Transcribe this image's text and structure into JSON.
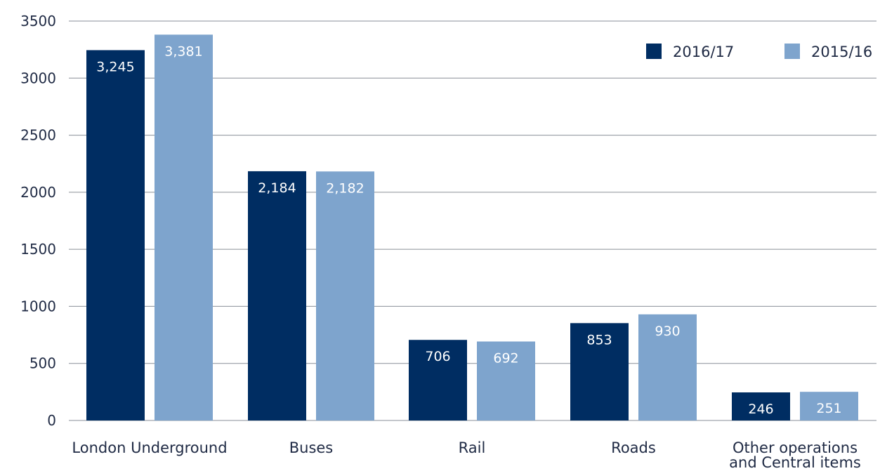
{
  "chart_data": {
    "type": "bar",
    "categories": [
      [
        "London Underground"
      ],
      [
        "Buses"
      ],
      [
        "Rail"
      ],
      [
        "Roads"
      ],
      [
        "Other operations",
        "and Central items"
      ]
    ],
    "series": [
      {
        "name": "2016/17",
        "values": [
          3245,
          2184,
          706,
          853,
          246
        ],
        "labels": [
          "3,245",
          "2,184",
          "706",
          "853",
          "246"
        ],
        "color": "#002d62"
      },
      {
        "name": "2015/16",
        "values": [
          3381,
          2182,
          692,
          930,
          251
        ],
        "labels": [
          "3,381",
          "2,182",
          "692",
          "930",
          "251"
        ],
        "color": "#7ea4cd"
      }
    ],
    "ylim": [
      0,
      3500
    ],
    "yticks": [
      "0",
      "500",
      "1000",
      "1500",
      "2000",
      "2500",
      "3000",
      "3500"
    ],
    "ytick_values": [
      0,
      500,
      1000,
      1500,
      2000,
      2500,
      3000,
      3500
    ],
    "grid": true,
    "legend_position": "top-right",
    "title": "",
    "xlabel": "",
    "ylabel": ""
  }
}
